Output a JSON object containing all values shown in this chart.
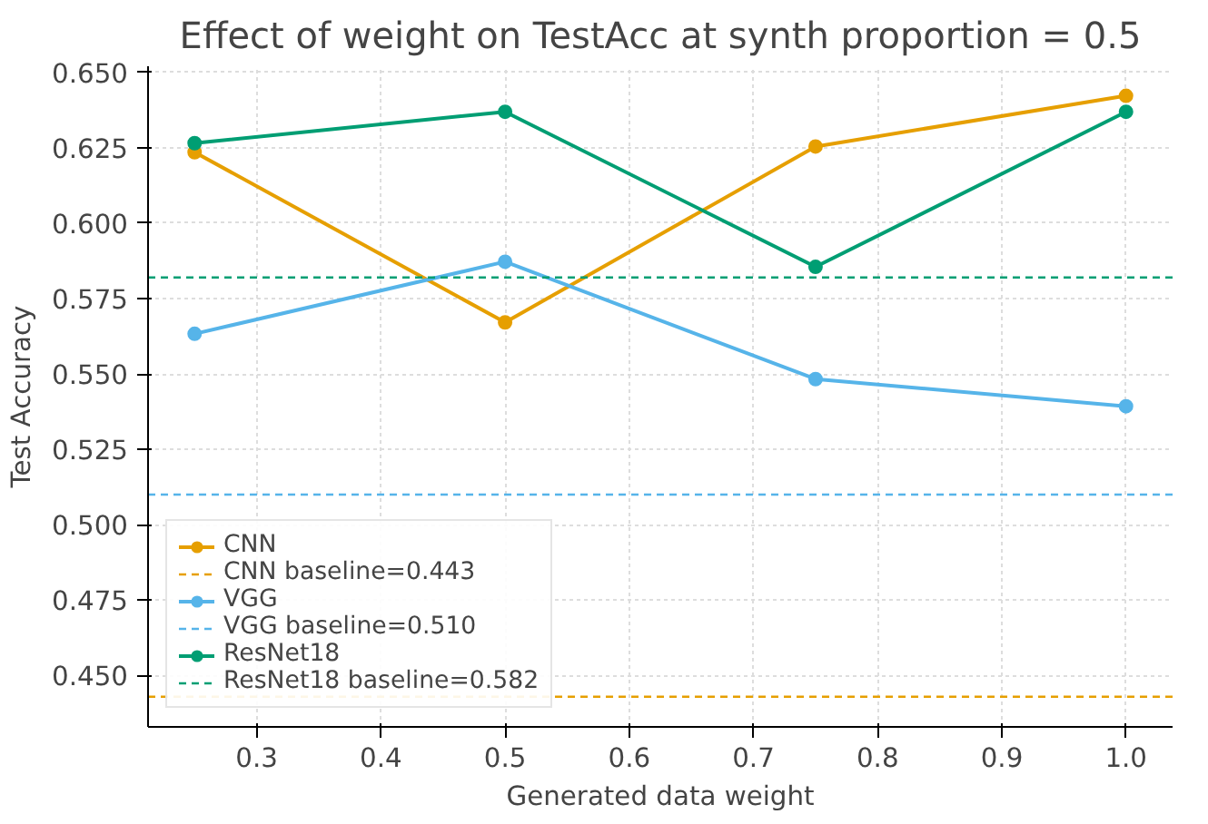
{
  "chart_data": {
    "type": "line",
    "title": "Effect of weight on TestAcc at synth proportion = 0.5",
    "xlabel": "Generated data weight",
    "ylabel": "Test Accuracy",
    "x": [
      0.25,
      0.5,
      0.75,
      1.0
    ],
    "series": [
      {
        "name": "CNN",
        "color": "#e69f00",
        "values": [
          0.6235,
          0.5671,
          0.6254,
          0.6422
        ]
      },
      {
        "name": "VGG",
        "color": "#56b4e9",
        "values": [
          0.5633,
          0.5872,
          0.5483,
          0.5393
        ]
      },
      {
        "name": "ResNet18",
        "color": "#009e73",
        "values": [
          0.6265,
          0.6369,
          0.5855,
          0.6369
        ]
      }
    ],
    "ref_lines": [
      {
        "axis": "y",
        "value": 0.443,
        "label": "CNN baseline=0.443",
        "color": "#e69f00",
        "line_style": "dashed"
      },
      {
        "axis": "y",
        "value": 0.51,
        "label": "VGG baseline=0.510",
        "color": "#56b4e9",
        "line_style": "dashed"
      },
      {
        "axis": "y",
        "value": 0.582,
        "label": "ResNet18 baseline=0.582",
        "color": "#009e73",
        "line_style": "dashed"
      }
    ],
    "xlim": [
      0.2125,
      1.0375
    ],
    "ylim": [
      0.433,
      0.652
    ],
    "xticks": [
      0.3,
      0.4,
      0.5,
      0.6,
      0.7,
      0.8,
      0.9,
      {
        "value": 1.0,
        "label": "1.0"
      }
    ],
    "yticks": [
      {
        "value": 0.45,
        "label": "0.450"
      },
      {
        "value": 0.475,
        "label": "0.475"
      },
      {
        "value": 0.5,
        "label": "0.500"
      },
      {
        "value": 0.525,
        "label": "0.525"
      },
      {
        "value": 0.55,
        "label": "0.550"
      },
      {
        "value": 0.575,
        "label": "0.575"
      },
      {
        "value": 0.6,
        "label": "0.600"
      },
      {
        "value": 0.625,
        "label": "0.625"
      },
      {
        "value": 0.65,
        "label": "0.650"
      }
    ],
    "grid": true,
    "legend": "bottom left",
    "marker": "circle",
    "line_style": "solid"
  }
}
